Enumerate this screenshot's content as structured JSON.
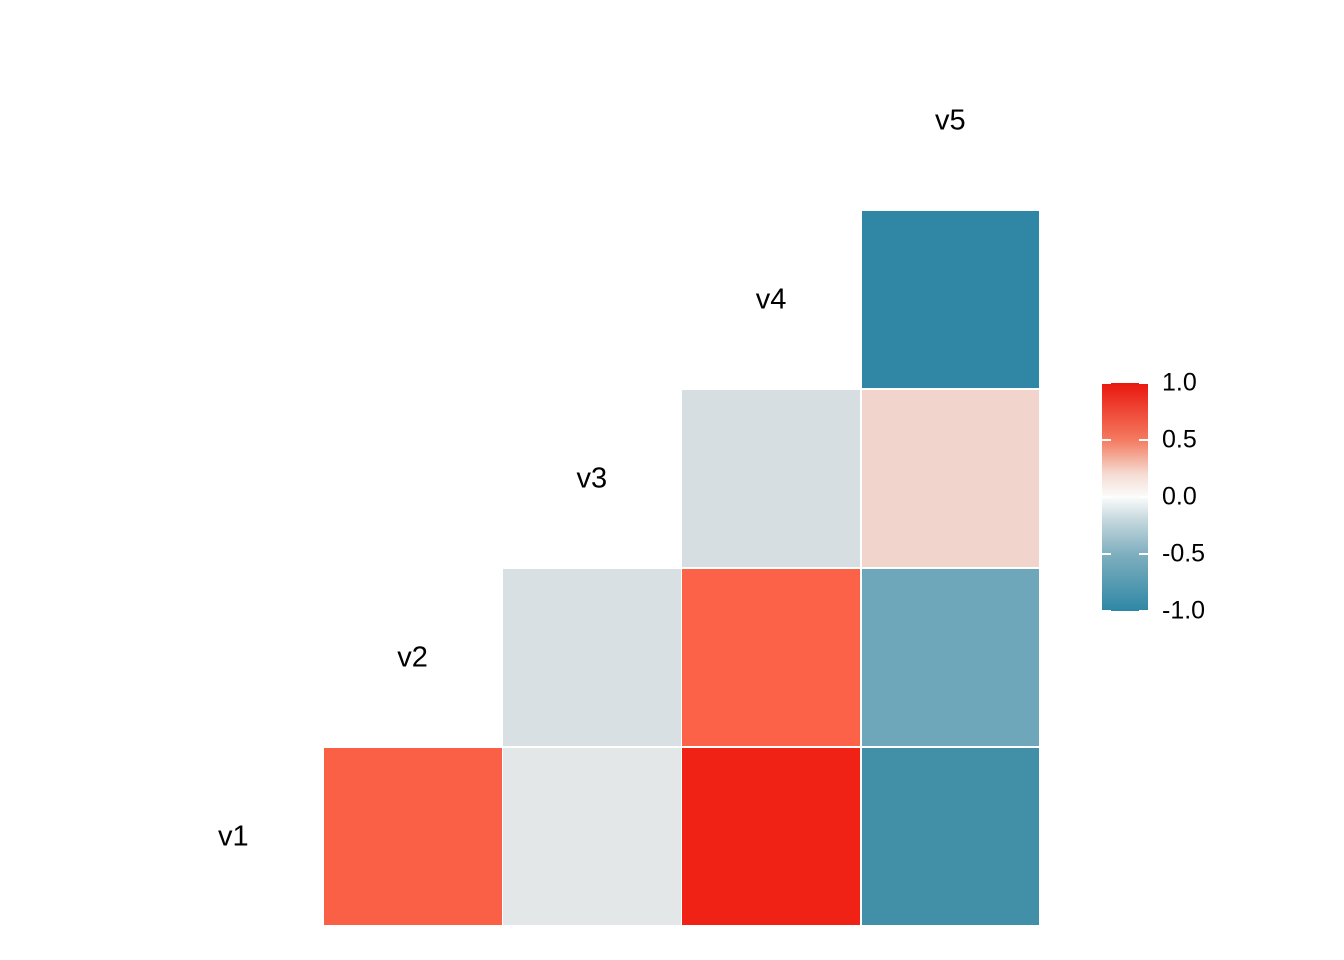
{
  "chart_data": {
    "type": "heatmap",
    "subtype": "correlation-matrix-upper-triangle",
    "title": "",
    "variables": [
      "v1",
      "v2",
      "v3",
      "v4",
      "v5"
    ],
    "diagonal_labels_shown": true,
    "grid_line_color": "#FFFFFF",
    "background_color": "#FFFFFF",
    "text_color": "#000000",
    "cells": [
      {
        "row": "v1",
        "col": "v2",
        "value": 0.7,
        "color": "#FA6045"
      },
      {
        "row": "v1",
        "col": "v3",
        "value": -0.05,
        "color": "#E3E7E8"
      },
      {
        "row": "v1",
        "col": "v4",
        "value": 0.95,
        "color": "#F02115"
      },
      {
        "row": "v1",
        "col": "v5",
        "value": -0.8,
        "color": "#4190A8"
      },
      {
        "row": "v2",
        "col": "v3",
        "value": -0.1,
        "color": "#D8E0E3"
      },
      {
        "row": "v2",
        "col": "v4",
        "value": 0.7,
        "color": "#FB6247"
      },
      {
        "row": "v2",
        "col": "v5",
        "value": -0.55,
        "color": "#6FA7BA"
      },
      {
        "row": "v3",
        "col": "v4",
        "value": -0.1,
        "color": "#D6DEE1"
      },
      {
        "row": "v3",
        "col": "v5",
        "value": 0.2,
        "color": "#F1D4CB"
      },
      {
        "row": "v4",
        "col": "v5",
        "value": -0.9,
        "color": "#3087A5"
      }
    ],
    "legend": {
      "position": "right",
      "range": [
        -1,
        1
      ],
      "ticks": [
        "1.0",
        "0.5",
        "0.0",
        "-0.5",
        "-1.0"
      ],
      "tick_values": [
        1,
        0.5,
        0,
        -0.5,
        -1
      ],
      "high_color": "#E9170F",
      "mid_color": "#FBFCFC",
      "low_color": "#2F87A5",
      "tick_mark_color": "#FFFFFF",
      "gradient_stops": [
        {
          "pos": 0,
          "color": "#E9170F"
        },
        {
          "pos": 0.25,
          "color": "#F47B60"
        },
        {
          "pos": 0.4,
          "color": "#F5DCD3"
        },
        {
          "pos": 0.5,
          "color": "#FBFCFC"
        },
        {
          "pos": 0.6,
          "color": "#C5D8DE"
        },
        {
          "pos": 0.75,
          "color": "#7FAFBF"
        },
        {
          "pos": 1,
          "color": "#2F87A5"
        }
      ]
    }
  }
}
